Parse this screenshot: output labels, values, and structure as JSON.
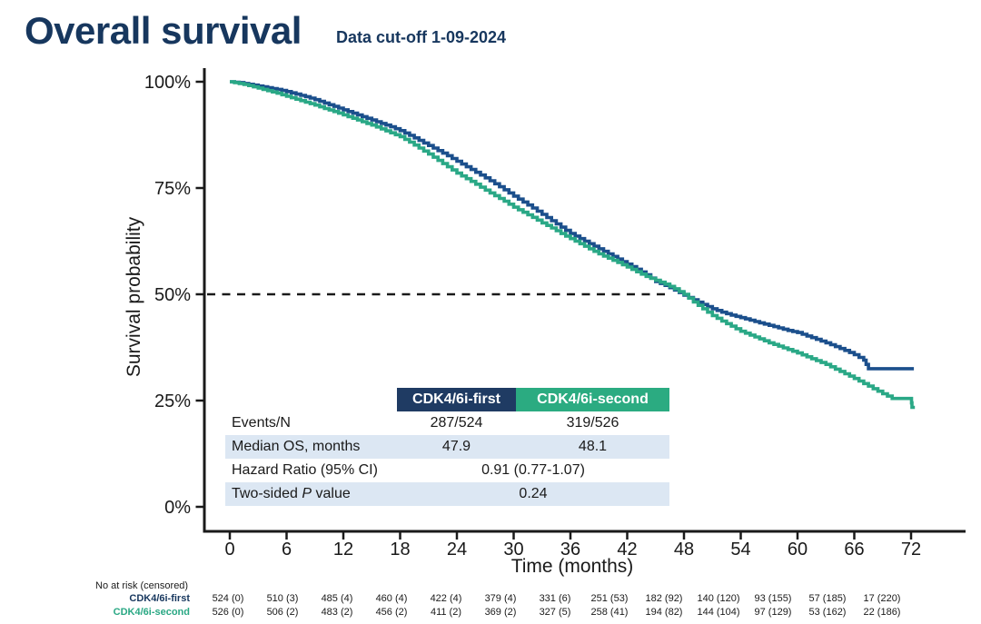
{
  "header": {
    "title": "Overall survival",
    "subtitle": "Data cut-off 1-09-2024"
  },
  "colors": {
    "title_navy": "#17375e",
    "series_first": "#1b4f8c",
    "series_second": "#2aa886",
    "header_first_bg": "#1f3b63",
    "header_second_bg": "#2bab81",
    "shaded_row": "#dce7f3",
    "axis": "#1a1a1a"
  },
  "axes": {
    "x": {
      "title": "Time (months)",
      "ticks": [
        0,
        6,
        12,
        18,
        24,
        30,
        36,
        42,
        48,
        54,
        60,
        66,
        72
      ]
    },
    "y": {
      "title": "Survival probability",
      "ticks": [
        {
          "label": "100%",
          "value": 100
        },
        {
          "label": "75%",
          "value": 75
        },
        {
          "label": "50%",
          "value": 50
        },
        {
          "label": "25%",
          "value": 25
        },
        {
          "label": "0%",
          "value": 0
        }
      ]
    }
  },
  "chart_data": {
    "type": "line",
    "subtype": "kaplan-meier-step",
    "title": "Overall survival",
    "xlabel": "Time (months)",
    "ylabel": "Survival probability",
    "xlim": [
      0,
      78
    ],
    "ylim": [
      0,
      100
    ],
    "grid": false,
    "median_reference_line": {
      "y_percent": 50,
      "x_start_month": -2.4,
      "x_end_month": 46.4,
      "style": "dashed",
      "color": "#1a1a1a"
    },
    "series": [
      {
        "name": "CDK4/6i-first",
        "color": "#1b4f8c",
        "median_os_months": 47.9,
        "points": [
          [
            0,
            100
          ],
          [
            1,
            99.8
          ],
          [
            2,
            99.4
          ],
          [
            3,
            99.0
          ],
          [
            4,
            98.6
          ],
          [
            5,
            98.2
          ],
          [
            6,
            97.7
          ],
          [
            7,
            97.1
          ],
          [
            8,
            96.5
          ],
          [
            9,
            95.8
          ],
          [
            10,
            95.0
          ],
          [
            11,
            94.2
          ],
          [
            12,
            93.4
          ],
          [
            13,
            92.6
          ],
          [
            14,
            91.8
          ],
          [
            15,
            91.0
          ],
          [
            16,
            90.2
          ],
          [
            17,
            89.4
          ],
          [
            18,
            88.5
          ],
          [
            19,
            87.4
          ],
          [
            20,
            86.2
          ],
          [
            21,
            85.0
          ],
          [
            22,
            83.8
          ],
          [
            23,
            82.6
          ],
          [
            24,
            81.3
          ],
          [
            25,
            80.0
          ],
          [
            26,
            78.7
          ],
          [
            27,
            77.4
          ],
          [
            28,
            76.0
          ],
          [
            29,
            74.6
          ],
          [
            30,
            73.1
          ],
          [
            31,
            71.7
          ],
          [
            32,
            70.3
          ],
          [
            33,
            68.8
          ],
          [
            34,
            67.3
          ],
          [
            35,
            65.8
          ],
          [
            36,
            64.3
          ],
          [
            37,
            63.1
          ],
          [
            38,
            61.9
          ],
          [
            39,
            60.7
          ],
          [
            40,
            59.5
          ],
          [
            41,
            58.3
          ],
          [
            42,
            57.1
          ],
          [
            43,
            55.9
          ],
          [
            44,
            54.6
          ],
          [
            45,
            53.0
          ],
          [
            46,
            52.1
          ],
          [
            47,
            51.0
          ],
          [
            48,
            49.8
          ],
          [
            49,
            48.7
          ],
          [
            50,
            47.6
          ],
          [
            51,
            46.6
          ],
          [
            52,
            45.8
          ],
          [
            53,
            45.1
          ],
          [
            54,
            44.5
          ],
          [
            55,
            43.9
          ],
          [
            56,
            43.3
          ],
          [
            57,
            42.7
          ],
          [
            58,
            42.1
          ],
          [
            59,
            41.5
          ],
          [
            60,
            41.0
          ],
          [
            61,
            40.2
          ],
          [
            62,
            39.4
          ],
          [
            63,
            38.6
          ],
          [
            64,
            37.7
          ],
          [
            65,
            36.8
          ],
          [
            66,
            35.8
          ],
          [
            67,
            34.5
          ],
          [
            67.5,
            32.5
          ],
          [
            72.3,
            32.5
          ]
        ]
      },
      {
        "name": "CDK4/6i-second",
        "color": "#2aa886",
        "median_os_months": 48.1,
        "points": [
          [
            0,
            100
          ],
          [
            1,
            99.6
          ],
          [
            2,
            99.1
          ],
          [
            3,
            98.5
          ],
          [
            4,
            97.9
          ],
          [
            5,
            97.3
          ],
          [
            6,
            96.6
          ],
          [
            7,
            95.9
          ],
          [
            8,
            95.2
          ],
          [
            9,
            94.5
          ],
          [
            10,
            93.7
          ],
          [
            11,
            93.0
          ],
          [
            12,
            92.2
          ],
          [
            13,
            91.4
          ],
          [
            14,
            90.6
          ],
          [
            15,
            89.8
          ],
          [
            16,
            88.9
          ],
          [
            17,
            88.0
          ],
          [
            18,
            87.1
          ],
          [
            19,
            85.8
          ],
          [
            20,
            84.4
          ],
          [
            21,
            83.0
          ],
          [
            22,
            81.5
          ],
          [
            23,
            80.0
          ],
          [
            24,
            78.5
          ],
          [
            25,
            77.2
          ],
          [
            26,
            75.9
          ],
          [
            27,
            74.5
          ],
          [
            28,
            73.2
          ],
          [
            29,
            71.9
          ],
          [
            30,
            70.5
          ],
          [
            31,
            69.3
          ],
          [
            32,
            68.1
          ],
          [
            33,
            66.8
          ],
          [
            34,
            65.6
          ],
          [
            35,
            64.3
          ],
          [
            36,
            63.1
          ],
          [
            37,
            61.9
          ],
          [
            38,
            60.7
          ],
          [
            39,
            59.5
          ],
          [
            40,
            58.5
          ],
          [
            41,
            57.5
          ],
          [
            42,
            56.4
          ],
          [
            43,
            55.3
          ],
          [
            44,
            54.2
          ],
          [
            45,
            53.3
          ],
          [
            46,
            52.4
          ],
          [
            47,
            51.3
          ],
          [
            48,
            50.0
          ],
          [
            49,
            48.2
          ],
          [
            50,
            46.6
          ],
          [
            51,
            45.0
          ],
          [
            52,
            43.7
          ],
          [
            53,
            42.5
          ],
          [
            54,
            41.3
          ],
          [
            55,
            40.4
          ],
          [
            56,
            39.5
          ],
          [
            57,
            38.6
          ],
          [
            58,
            37.8
          ],
          [
            59,
            37.0
          ],
          [
            60,
            36.2
          ],
          [
            61,
            35.3
          ],
          [
            62,
            34.4
          ],
          [
            63,
            33.5
          ],
          [
            64,
            32.4
          ],
          [
            65,
            31.3
          ],
          [
            66,
            30.2
          ],
          [
            67,
            29.0
          ],
          [
            68,
            27.8
          ],
          [
            69,
            26.6
          ],
          [
            70,
            25.5
          ],
          [
            72.0,
            25.5
          ],
          [
            72.1,
            23.4
          ],
          [
            72.4,
            23.4
          ]
        ]
      }
    ]
  },
  "stats_table": {
    "columns": [
      "CDK4/6i-first",
      "CDK4/6i-second"
    ],
    "rows": [
      {
        "label": "Events/N",
        "values": [
          "287/524",
          "319/526"
        ]
      },
      {
        "label": "Median OS, months",
        "values": [
          "47.9",
          "48.1"
        ]
      },
      {
        "label": "Hazard Ratio (95% CI)",
        "value": "0.91 (0.77-1.07)"
      },
      {
        "label_prefix": "Two-sided ",
        "label_italic": "P",
        "label_suffix": " value",
        "value": "0.24"
      }
    ]
  },
  "risk_table": {
    "caption": "No at risk (censored)",
    "rows": [
      {
        "label": "CDK4/6i-first",
        "color": "#17375e",
        "values": [
          "524 (0)",
          "510 (3)",
          "485 (4)",
          "460 (4)",
          "422 (4)",
          "379 (4)",
          "331 (6)",
          "251 (53)",
          "182 (92)",
          "140 (120)",
          "93 (155)",
          "57 (185)",
          "17 (220)"
        ]
      },
      {
        "label": "CDK4/6i-second",
        "color": "#2aa884",
        "values": [
          "526 (0)",
          "506 (2)",
          "483 (2)",
          "456 (2)",
          "411 (2)",
          "369 (2)",
          "327 (5)",
          "258 (41)",
          "194 (82)",
          "144 (104)",
          "97 (129)",
          "53 (162)",
          "22 (186)"
        ]
      }
    ]
  }
}
